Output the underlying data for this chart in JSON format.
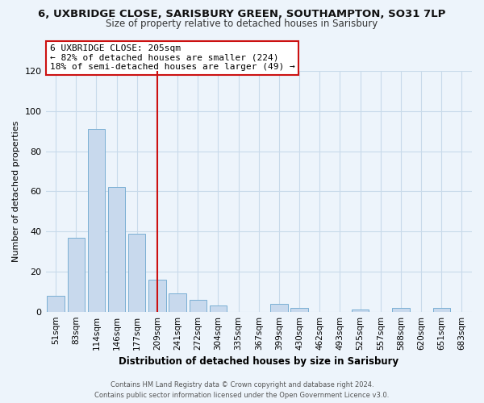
{
  "title": "6, UXBRIDGE CLOSE, SARISBURY GREEN, SOUTHAMPTON, SO31 7LP",
  "subtitle": "Size of property relative to detached houses in Sarisbury",
  "xlabel": "Distribution of detached houses by size in Sarisbury",
  "ylabel": "Number of detached properties",
  "categories": [
    "51sqm",
    "83sqm",
    "114sqm",
    "146sqm",
    "177sqm",
    "209sqm",
    "241sqm",
    "272sqm",
    "304sqm",
    "335sqm",
    "367sqm",
    "399sqm",
    "430sqm",
    "462sqm",
    "493sqm",
    "525sqm",
    "557sqm",
    "588sqm",
    "620sqm",
    "651sqm",
    "683sqm"
  ],
  "values": [
    8,
    37,
    91,
    62,
    39,
    16,
    9,
    6,
    3,
    0,
    0,
    4,
    2,
    0,
    0,
    1,
    0,
    2,
    0,
    2,
    0
  ],
  "bar_color": "#c8d9ed",
  "bar_edge_color": "#7aafd4",
  "grid_color": "#c8daea",
  "vline_x_index": 5,
  "vline_color": "#cc1111",
  "annotation_line1": "6 UXBRIDGE CLOSE: 205sqm",
  "annotation_line2": "← 82% of detached houses are smaller (224)",
  "annotation_line3": "18% of semi-detached houses are larger (49) →",
  "annotation_box_color": "#ffffff",
  "annotation_box_edge": "#cc1111",
  "ylim": [
    0,
    120
  ],
  "yticks": [
    0,
    20,
    40,
    60,
    80,
    100,
    120
  ],
  "footer_line1": "Contains HM Land Registry data © Crown copyright and database right 2024.",
  "footer_line2": "Contains public sector information licensed under the Open Government Licence v3.0.",
  "bg_color": "#edf4fb",
  "title_fontsize": 9.5,
  "subtitle_fontsize": 8.5,
  "tick_fontsize": 7.5,
  "ytick_fontsize": 8,
  "ylabel_fontsize": 8,
  "xlabel_fontsize": 8.5,
  "ann_fontsize": 8,
  "footer_fontsize": 6
}
